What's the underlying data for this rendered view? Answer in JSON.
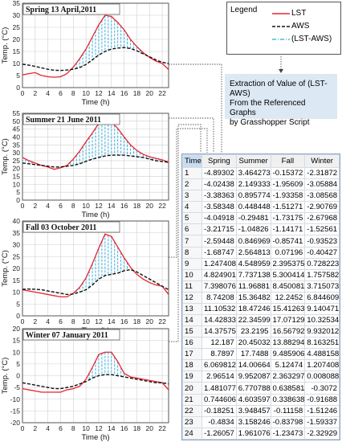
{
  "legend": {
    "title": "Legend",
    "entries": [
      {
        "label": "LST",
        "color": "#e8252f",
        "style": "solid"
      },
      {
        "label": "AWS",
        "color": "#111111",
        "style": "dashed"
      },
      {
        "label": "(LST-AWS)",
        "color": "#29a8d8",
        "style": "dashdot"
      }
    ]
  },
  "extraction_note": {
    "line1": "Extraction of Value of (LST-AWS)",
    "line2": "From the Referenced Graphs",
    "line3": "by Grasshopper Script"
  },
  "chart_data": [
    {
      "type": "line",
      "title": "Spring 13 April,2011",
      "xlabel": "Time (h)",
      "ylabel": "Temp. (°C)",
      "xlim": [
        0,
        23
      ],
      "ylim": [
        0,
        35
      ],
      "xticks": [
        0,
        2,
        4,
        6,
        8,
        10,
        12,
        14,
        16,
        18,
        20,
        22
      ],
      "yticks": [
        0,
        5,
        10,
        15,
        20,
        25,
        30,
        35
      ],
      "grid": true,
      "x": [
        0,
        1,
        2,
        3,
        4,
        5,
        6,
        7,
        8,
        9,
        10,
        11,
        12,
        13,
        14,
        15,
        16,
        17,
        18,
        19,
        20,
        21,
        22,
        23
      ],
      "series": [
        {
          "name": "LST",
          "values": [
            5.3,
            5.8,
            6.2,
            5.0,
            4.5,
            4.3,
            4.5,
            5.8,
            8.5,
            12.0,
            16.0,
            21.0,
            26.0,
            30.0,
            29.5,
            27.0,
            24.0,
            20.0,
            17.0,
            14.5,
            12.5,
            11.0,
            10.0,
            7.5
          ]
        },
        {
          "name": "AWS",
          "values": [
            9.7,
            9.3,
            8.8,
            8.2,
            7.6,
            7.2,
            7.1,
            7.3,
            7.6,
            8.3,
            9.6,
            11.5,
            13.5,
            15.0,
            16.0,
            16.4,
            16.6,
            16.2,
            15.3,
            14.0,
            12.8,
            11.5,
            10.5,
            10.0
          ]
        }
      ]
    },
    {
      "type": "line",
      "title": "Summer 21 June 2011",
      "xlabel": "Time (h)",
      "ylabel": "Temp. (°C)",
      "xlim": [
        0,
        23
      ],
      "ylim": [
        0,
        55
      ],
      "xticks": [
        0,
        2,
        4,
        6,
        8,
        10,
        12,
        14,
        16,
        18,
        20,
        22
      ],
      "yticks": [
        0,
        5,
        10,
        15,
        20,
        25,
        30,
        35,
        40,
        45,
        50,
        55
      ],
      "grid": true,
      "x": [
        0,
        1,
        2,
        3,
        4,
        5,
        6,
        7,
        8,
        9,
        10,
        11,
        12,
        13,
        14,
        15,
        16,
        17,
        18,
        19,
        20,
        21,
        22,
        23
      ],
      "series": [
        {
          "name": "LST",
          "values": [
            27.0,
            25.0,
            23.5,
            22.0,
            21.0,
            19.5,
            20.5,
            22.0,
            26.0,
            31.0,
            37.0,
            42.5,
            48.5,
            51.0,
            49.5,
            45.5,
            40.0,
            35.0,
            31.5,
            29.0,
            27.5,
            26.5,
            25.5,
            24.0
          ]
        },
        {
          "name": "AWS",
          "values": [
            23.5,
            23.0,
            22.5,
            22.0,
            21.5,
            21.0,
            21.0,
            21.5,
            22.0,
            23.0,
            24.5,
            26.0,
            27.0,
            28.0,
            28.5,
            28.5,
            28.5,
            28.0,
            27.5,
            27.0,
            26.0,
            25.0,
            24.5,
            24.0
          ]
        }
      ]
    },
    {
      "type": "line",
      "title": "Fall 03 October 2011",
      "xlabel": "Time (h)",
      "ylabel": "Temp. (°C)",
      "xlim": [
        0,
        23
      ],
      "ylim": [
        0,
        40
      ],
      "xticks": [
        0,
        2,
        4,
        6,
        8,
        10,
        12,
        14,
        16,
        18,
        20,
        22
      ],
      "yticks": [
        0,
        5,
        10,
        15,
        20,
        25,
        30,
        35,
        40
      ],
      "grid": true,
      "x": [
        0,
        1,
        2,
        3,
        4,
        5,
        6,
        7,
        8,
        9,
        10,
        11,
        12,
        13,
        14,
        15,
        16,
        17,
        18,
        19,
        20,
        21,
        22,
        23
      ],
      "series": [
        {
          "name": "LST",
          "values": [
            11.0,
            10.5,
            10.0,
            9.5,
            9.0,
            8.5,
            8.0,
            8.0,
            9.5,
            12.0,
            16.0,
            22.0,
            28.5,
            34.5,
            33.5,
            29.0,
            24.5,
            20.5,
            17.5,
            15.5,
            14.0,
            13.0,
            12.5,
            9.0
          ]
        },
        {
          "name": "AWS",
          "values": [
            11.2,
            11.3,
            11.2,
            11.0,
            10.5,
            10.0,
            9.5,
            9.0,
            9.2,
            10.0,
            11.0,
            13.0,
            15.5,
            17.0,
            17.5,
            18.0,
            19.0,
            19.5,
            18.5,
            17.0,
            15.5,
            14.0,
            12.5,
            11.0
          ]
        }
      ]
    },
    {
      "type": "line",
      "title": "Winter 07 January 2011",
      "xlabel": "Time (h)",
      "ylabel": "Temp. (°C)",
      "xlim": [
        0,
        23
      ],
      "ylim": [
        -20,
        20
      ],
      "xticks": [
        0,
        2,
        4,
        6,
        8,
        10,
        12,
        14,
        16,
        18,
        20,
        22
      ],
      "yticks": [
        -20,
        -15,
        -10,
        -5,
        0,
        5,
        10,
        15,
        20
      ],
      "grid": true,
      "x": [
        0,
        1,
        2,
        3,
        4,
        5,
        6,
        7,
        8,
        9,
        10,
        11,
        12,
        13,
        14,
        15,
        16,
        17,
        18,
        19,
        20,
        21,
        22,
        23
      ],
      "series": [
        {
          "name": "LST",
          "values": [
            -5.5,
            -6.0,
            -6.5,
            -7.0,
            -7.0,
            -7.0,
            -7.0,
            -6.0,
            -5.5,
            -4.5,
            -1.5,
            3.5,
            9.0,
            10.0,
            10.0,
            6.0,
            1.0,
            -0.5,
            -1.0,
            -1.5,
            -2.0,
            -2.5,
            -3.0,
            -6.0
          ]
        },
        {
          "name": "AWS",
          "values": [
            -3.0,
            -3.5,
            -4.0,
            -4.5,
            -5.0,
            -5.5,
            -5.5,
            -5.0,
            -4.5,
            -3.5,
            -2.5,
            -1.0,
            0.0,
            0.5,
            0.5,
            0.0,
            -0.5,
            -1.0,
            -1.5,
            -2.0,
            -2.5,
            -3.0,
            -3.0,
            -3.5
          ]
        }
      ]
    }
  ],
  "table": {
    "type": "table",
    "headers": [
      "Time",
      "Spring",
      "Summer",
      "Fall",
      "Winter"
    ],
    "rows": [
      [
        "1",
        "-4.89302",
        "3.464273",
        "-0.15372",
        "-2.31872"
      ],
      [
        "2",
        "-4.02438",
        "2.149333",
        "-1.95609",
        "-3.05884"
      ],
      [
        "3",
        "-3.38363",
        "0.895774",
        "-1.93358",
        "-3.08568"
      ],
      [
        "4",
        "-3.58348",
        "0.448448",
        "-1.51271",
        "-2.90769"
      ],
      [
        "5",
        "-4.04918",
        "-0.29481",
        "-1.73175",
        "-2.67968"
      ],
      [
        "6",
        "-3.21715",
        "-1.04826",
        "-1.14171",
        "-1.52561"
      ],
      [
        "7",
        "-2.59448",
        "0.846969",
        "-0.85741",
        "-0.93523"
      ],
      [
        "8",
        "-1.68747",
        "2.564813",
        "0.07196",
        "-0.40427"
      ],
      [
        "9",
        "1.247408",
        "4.548959",
        "2.395375",
        "0.728223"
      ],
      [
        "10",
        "4.824901",
        "7.737138",
        "5.300414",
        "1.757582"
      ],
      [
        "11",
        "7.398076",
        "11.96881",
        "8.450081",
        "3.715073"
      ],
      [
        "12",
        "8.74208",
        "15.36482",
        "12.2452",
        "6.844609"
      ],
      [
        "13",
        "11.10532",
        "18.47246",
        "15.41263",
        "9.140471"
      ],
      [
        "14",
        "14.42833",
        "22.34599",
        "17.07129",
        "10.32534"
      ],
      [
        "15",
        "14.37575",
        "23.2195",
        "16.56792",
        "9.932012"
      ],
      [
        "16",
        "12.187",
        "20.45032",
        "13.88294",
        "8.163251"
      ],
      [
        "17",
        "8.7897",
        "17.7488",
        "9.485906",
        "4.488158"
      ],
      [
        "18",
        "6.069812",
        "14.00664",
        "5.12474",
        "1.207408"
      ],
      [
        "19",
        "2.96514",
        "9.952087",
        "2.363297",
        "0.008088"
      ],
      [
        "20",
        "1.481077",
        "6.770788",
        "0.638581",
        "-0.3072"
      ],
      [
        "21",
        "0.744606",
        "4.603597",
        "0.338638",
        "-0.91688"
      ],
      [
        "22",
        "-0.18251",
        "3.948457",
        "-0.11158",
        "-1.51246"
      ],
      [
        "23",
        "-0.4834",
        "3.158246",
        "-0.83798",
        "-1.59337"
      ],
      [
        "24",
        "-1.26057",
        "1.961076",
        "-1.23473",
        "-2.32929"
      ]
    ]
  }
}
